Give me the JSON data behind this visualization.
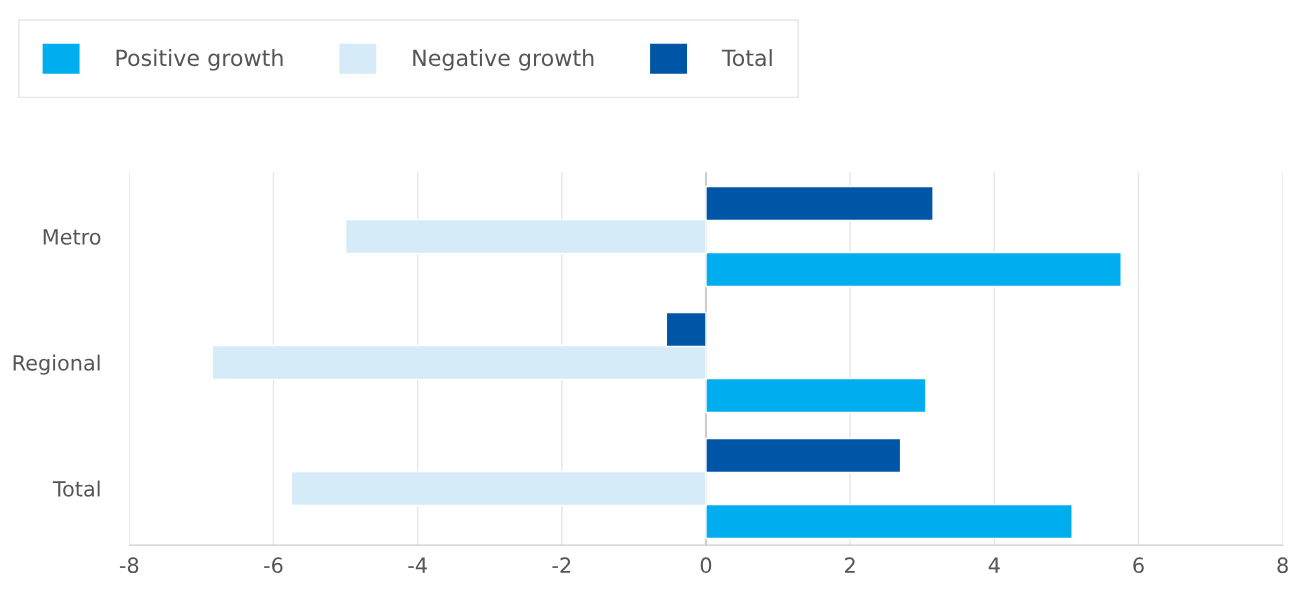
{
  "chart_data": {
    "type": "bar",
    "orientation": "horizontal",
    "categories": [
      "Metro",
      "Regional",
      "Total"
    ],
    "series": [
      {
        "name": "Positive growth",
        "color": "#00aeef",
        "values": [
          5.76,
          3.05,
          5.08
        ]
      },
      {
        "name": "Negative growth",
        "color": "#d5ecf8",
        "values": [
          -5.0,
          -6.85,
          -5.75
        ]
      },
      {
        "name": "Total",
        "color": "#0056a6",
        "values": [
          3.15,
          -0.55,
          2.7
        ]
      }
    ],
    "xlim": [
      -8,
      8
    ],
    "xticks": [
      -8,
      -6,
      -4,
      -2,
      0,
      2,
      4,
      6,
      8
    ],
    "grid": "x",
    "legend": "top"
  }
}
